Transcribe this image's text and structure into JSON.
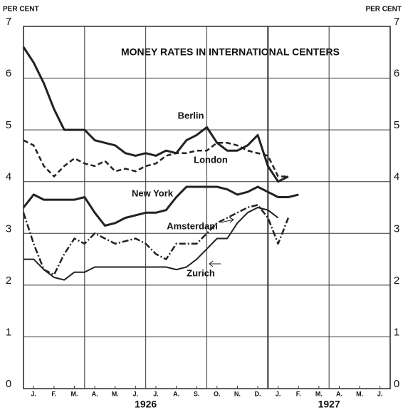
{
  "chart_data": {
    "type": "line",
    "title": "MONEY RATES IN INTERNATIONAL CENTERS",
    "y_label_left": "PER CENT",
    "y_label_right": "PER CENT",
    "years": [
      {
        "value": 6,
        "label": "1926"
      },
      {
        "value": 15,
        "label": "1927"
      }
    ],
    "x": [
      0,
      0.5,
      1,
      1.5,
      2,
      2.5,
      3,
      3.5,
      4,
      4.5,
      5,
      5.5,
      6,
      6.5,
      7,
      7.5,
      8,
      8.5,
      9,
      9.5,
      10,
      10.5,
      11,
      11.5,
      12,
      12.5,
      13,
      13.5
    ],
    "xlim": [
      0,
      18
    ],
    "xticks": [
      {
        "value": 0.5,
        "label": "J."
      },
      {
        "value": 1.5,
        "label": "F."
      },
      {
        "value": 2.5,
        "label": "M."
      },
      {
        "value": 3.5,
        "label": "A."
      },
      {
        "value": 4.5,
        "label": "M."
      },
      {
        "value": 5.5,
        "label": "J."
      },
      {
        "value": 6.5,
        "label": "J."
      },
      {
        "value": 7.5,
        "label": "A."
      },
      {
        "value": 8.5,
        "label": "S."
      },
      {
        "value": 9.5,
        "label": "O."
      },
      {
        "value": 10.5,
        "label": "N."
      },
      {
        "value": 11.5,
        "label": "D."
      },
      {
        "value": 12.5,
        "label": "J."
      },
      {
        "value": 13.5,
        "label": "F."
      },
      {
        "value": 14.5,
        "label": "M."
      },
      {
        "value": 15.5,
        "label": "A."
      },
      {
        "value": 16.5,
        "label": "M."
      },
      {
        "value": 17.5,
        "label": "J."
      }
    ],
    "ylim": [
      0,
      7
    ],
    "yticks": [
      0,
      1,
      2,
      3,
      4,
      5,
      6,
      7
    ],
    "grid": true,
    "series": [
      {
        "name": "Berlin",
        "color": "#222222",
        "dash": "solid",
        "width": 3,
        "values": [
          6.6,
          6.3,
          5.9,
          5.4,
          5.0,
          5.0,
          5.0,
          4.8,
          4.75,
          4.7,
          4.55,
          4.5,
          4.55,
          4.5,
          4.6,
          4.55,
          4.8,
          4.9,
          5.05,
          4.75,
          4.6,
          4.6,
          4.7,
          4.9,
          4.3,
          4.0,
          4.1,
          null
        ]
      },
      {
        "name": "London",
        "color": "#222222",
        "dash": "dashed",
        "width": 2.5,
        "values": [
          4.8,
          4.7,
          4.3,
          4.1,
          4.3,
          4.45,
          4.35,
          4.3,
          4.4,
          4.2,
          4.25,
          4.2,
          4.3,
          4.35,
          4.5,
          4.55,
          4.55,
          4.6,
          4.6,
          4.75,
          4.75,
          4.7,
          4.6,
          4.55,
          4.5,
          4.1,
          4.1,
          null
        ]
      },
      {
        "name": "New York",
        "color": "#222222",
        "dash": "solid",
        "width": 3,
        "values": [
          3.5,
          3.75,
          3.65,
          3.65,
          3.65,
          3.65,
          3.7,
          3.4,
          3.15,
          3.2,
          3.3,
          3.35,
          3.4,
          3.4,
          3.45,
          3.7,
          3.9,
          3.9,
          3.9,
          3.9,
          3.85,
          3.75,
          3.8,
          3.9,
          3.8,
          3.7,
          3.7,
          3.75
        ]
      },
      {
        "name": "Amsterdam",
        "color": "#222222",
        "dash": "dashdot",
        "width": 2.5,
        "values": [
          3.4,
          2.8,
          2.3,
          2.2,
          2.6,
          2.9,
          2.8,
          3.0,
          2.9,
          2.8,
          2.85,
          2.9,
          2.8,
          2.6,
          2.5,
          2.8,
          2.8,
          2.8,
          3.0,
          3.2,
          3.3,
          3.4,
          3.5,
          3.55,
          3.3,
          2.8,
          3.3,
          null
        ]
      },
      {
        "name": "Zurich",
        "color": "#222222",
        "dash": "solid",
        "width": 2,
        "values": [
          2.5,
          2.5,
          2.3,
          2.15,
          2.1,
          2.25,
          2.25,
          2.35,
          2.35,
          2.35,
          2.35,
          2.35,
          2.35,
          2.35,
          2.35,
          2.3,
          2.35,
          2.5,
          2.7,
          2.9,
          2.9,
          3.2,
          3.4,
          3.5,
          3.45,
          3.3,
          null,
          null
        ]
      }
    ]
  }
}
